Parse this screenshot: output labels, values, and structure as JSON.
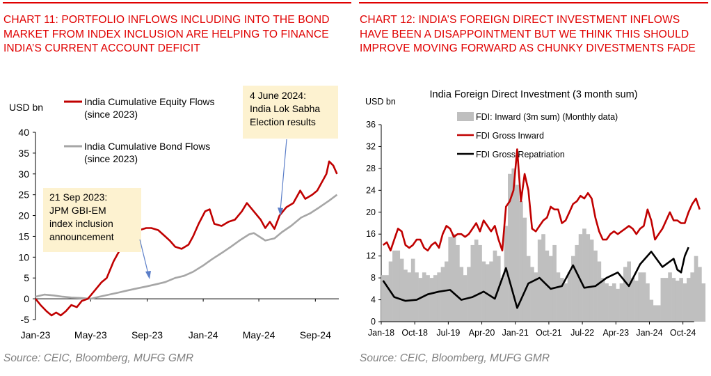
{
  "left": {
    "title": "CHART 11: PORTFOLIO INFLOWS INCLUDING INTO THE BOND MARKET FROM INDEX INCLUSION ARE HELPING TO FINANCE INDIA’S CURRENT ACCOUNT DEFICIT",
    "source": "Source: CEIC, Bloomberg, MUFG GMR",
    "colors": {
      "equity": "#c00000",
      "bond": "#a6a6a6",
      "callout": "#fdf2d0",
      "arrow": "#5b7ec8"
    },
    "annotations": [
      {
        "lines": [
          "4 June 2024:",
          "India Lok Sabha",
          "Election results"
        ]
      },
      {
        "lines": [
          "21 Sep 2023:",
          "JPM GBI-EM",
          "index inclusion",
          "announcement"
        ]
      }
    ],
    "chart_data": {
      "type": "line",
      "ylabel": "USD bn",
      "ylim": [
        -5,
        40
      ],
      "yticks": [
        -5,
        0,
        5,
        10,
        15,
        20,
        25,
        30,
        35,
        40
      ],
      "xlim": [
        "2023-01-01",
        "2024-10-22"
      ],
      "xtick_labels": [
        {
          "date": "2023-01-01",
          "label": "Jan-23"
        },
        {
          "date": "2023-05-01",
          "label": "May-23"
        },
        {
          "date": "2023-09-01",
          "label": "Sep-23"
        },
        {
          "date": "2024-01-01",
          "label": "Jan-24"
        },
        {
          "date": "2024-05-01",
          "label": "May-24"
        },
        {
          "date": "2024-09-01",
          "label": "Sep-24"
        }
      ],
      "legend": [
        "India Cumulative Equity Flows",
        "(since 2023)",
        "India Cumulative Bond Flows",
        "(since 2023)"
      ],
      "series": [
        {
          "name": "India Cumulative Equity Flows (since 2023)",
          "points": [
            [
              "2023-01-01",
              0
            ],
            [
              "2023-01-12",
              -1.5
            ],
            [
              "2023-01-25",
              -3
            ],
            [
              "2023-02-05",
              -4
            ],
            [
              "2023-02-15",
              -3.3
            ],
            [
              "2023-02-25",
              -4
            ],
            [
              "2023-03-08",
              -3
            ],
            [
              "2023-03-20",
              -1.5
            ],
            [
              "2023-04-01",
              -2
            ],
            [
              "2023-04-12",
              -0.5
            ],
            [
              "2023-04-25",
              0
            ],
            [
              "2023-05-10",
              2
            ],
            [
              "2023-05-25",
              4
            ],
            [
              "2023-06-05",
              5
            ],
            [
              "2023-06-20",
              9
            ],
            [
              "2023-07-05",
              12
            ],
            [
              "2023-07-20",
              15
            ],
            [
              "2023-08-01",
              16
            ],
            [
              "2023-08-15",
              16.5
            ],
            [
              "2023-08-30",
              17
            ],
            [
              "2023-09-10",
              17
            ],
            [
              "2023-09-25",
              16.5
            ],
            [
              "2023-10-10",
              15
            ],
            [
              "2023-10-20",
              14
            ],
            [
              "2023-11-01",
              12.5
            ],
            [
              "2023-11-15",
              12
            ],
            [
              "2023-11-30",
              13
            ],
            [
              "2023-12-10",
              15
            ],
            [
              "2023-12-22",
              18
            ],
            [
              "2024-01-05",
              21
            ],
            [
              "2024-01-15",
              21.5
            ],
            [
              "2024-01-25",
              18
            ],
            [
              "2024-02-10",
              17.5
            ],
            [
              "2024-02-25",
              18.5
            ],
            [
              "2024-03-10",
              19
            ],
            [
              "2024-03-25",
              21
            ],
            [
              "2024-04-05",
              23
            ],
            [
              "2024-04-20",
              21
            ],
            [
              "2024-05-05",
              19
            ],
            [
              "2024-05-15",
              17
            ],
            [
              "2024-05-25",
              18.5
            ],
            [
              "2024-06-04",
              16.8
            ],
            [
              "2024-06-15",
              20
            ],
            [
              "2024-06-30",
              22
            ],
            [
              "2024-07-15",
              23
            ],
            [
              "2024-07-30",
              26
            ],
            [
              "2024-08-10",
              24
            ],
            [
              "2024-08-25",
              25
            ],
            [
              "2024-09-05",
              26
            ],
            [
              "2024-09-15",
              28
            ],
            [
              "2024-09-25",
              30
            ],
            [
              "2024-10-01",
              33
            ],
            [
              "2024-10-10",
              32
            ],
            [
              "2024-10-18",
              30
            ]
          ]
        },
        {
          "name": "India Cumulative Bond Flows (since 2023)",
          "points": [
            [
              "2023-01-01",
              0.5
            ],
            [
              "2023-01-20",
              1
            ],
            [
              "2023-02-10",
              0.8
            ],
            [
              "2023-03-01",
              0.5
            ],
            [
              "2023-03-20",
              0.3
            ],
            [
              "2023-04-10",
              0.2
            ],
            [
              "2023-05-01",
              0
            ],
            [
              "2023-05-20",
              0.5
            ],
            [
              "2023-06-10",
              1
            ],
            [
              "2023-07-01",
              1.5
            ],
            [
              "2023-07-20",
              2
            ],
            [
              "2023-08-10",
              2.5
            ],
            [
              "2023-09-01",
              3
            ],
            [
              "2023-09-21",
              3.5
            ],
            [
              "2023-10-10",
              4
            ],
            [
              "2023-11-01",
              5
            ],
            [
              "2023-11-20",
              5.5
            ],
            [
              "2023-12-10",
              6.5
            ],
            [
              "2024-01-01",
              8
            ],
            [
              "2024-01-20",
              9.5
            ],
            [
              "2024-02-10",
              11
            ],
            [
              "2024-03-01",
              12.5
            ],
            [
              "2024-03-20",
              14
            ],
            [
              "2024-04-10",
              15.5
            ],
            [
              "2024-04-20",
              15.8
            ],
            [
              "2024-05-01",
              15
            ],
            [
              "2024-05-15",
              14
            ],
            [
              "2024-06-04",
              14.5
            ],
            [
              "2024-06-20",
              16
            ],
            [
              "2024-07-10",
              17.5
            ],
            [
              "2024-08-01",
              19.5
            ],
            [
              "2024-08-20",
              20.5
            ],
            [
              "2024-09-10",
              22
            ],
            [
              "2024-09-30",
              23.5
            ],
            [
              "2024-10-18",
              25
            ]
          ]
        }
      ]
    }
  },
  "right": {
    "title": "CHART 12: INDIA’S FOREIGN DIRECT INVESTMENT INFLOWS HAVE BEEN A DISAPPOINTMENT BUT WE THINK THIS SHOULD IMPROVE MOVING FORWARD AS CHUNKY DIVESTMENTS FADE",
    "source": "Source: CEIC, Bloomberg, MUFG GMR",
    "colors": {
      "bars": "#bfbfbf",
      "inward": "#c00000",
      "repat": "#000000"
    },
    "chart_data": {
      "type": "bar",
      "title": "India Foreign Direct Investment (3 month sum)",
      "ylabel": "USD bn",
      "ylim": [
        0,
        36
      ],
      "yticks": [
        0,
        4,
        8,
        12,
        16,
        20,
        24,
        28,
        32,
        36
      ],
      "x_months": [
        "2018-01",
        "2024-10"
      ],
      "xtick_labels": [
        "Jan-18",
        "Oct-18",
        "Jul-19",
        "Apr-20",
        "Jan-21",
        "Oct-21",
        "Jul-22",
        "Apr-23",
        "Jan-24",
        "Oct-24"
      ],
      "legend_labels": [
        "FDI: Inward (3m sum) (Monthly data)",
        "FDI Gross Inward",
        "FDI Gross Repatriation"
      ],
      "bars": {
        "name": "FDI: Inward (3m sum) (Monthly data)",
        "values": [
          8.5,
          8.5,
          11,
          13,
          13,
          11.5,
          9.5,
          9,
          11.5,
          9,
          8,
          9,
          8.5,
          8,
          8.5,
          9,
          10,
          11,
          15.5,
          16,
          14,
          10,
          8.5,
          10,
          14,
          15,
          14,
          11,
          10.5,
          11,
          13,
          12,
          8,
          17.5,
          27,
          28,
          25,
          22,
          19,
          12,
          10,
          9,
          15,
          16,
          13,
          12,
          14,
          9,
          8,
          7,
          9,
          12,
          14,
          16,
          17,
          16,
          15,
          13,
          11,
          8,
          7,
          6.5,
          7,
          6,
          7,
          10,
          11,
          8,
          7.5,
          9,
          9,
          7,
          4,
          3,
          3,
          8,
          8,
          9,
          8,
          7.5,
          8,
          7,
          8,
          9,
          12,
          10,
          7
        ]
      },
      "lines": [
        {
          "name": "FDI Gross Inward",
          "values": [
            14,
            14.5,
            13,
            15,
            17,
            16.5,
            14,
            13.5,
            14,
            15,
            15,
            13.5,
            13,
            14,
            14.5,
            13.5,
            16,
            17.5,
            17,
            15.5,
            16,
            16,
            15.5,
            16,
            17,
            18,
            16.5,
            18.5,
            17.5,
            16.5,
            17.5,
            15,
            13,
            21,
            22,
            24,
            31.5,
            22,
            27,
            24,
            17,
            16.5,
            17.5,
            18.5,
            19,
            21,
            20.5,
            20.5,
            18,
            18.5,
            20,
            21.5,
            22,
            23,
            22.5,
            23.5,
            22.5,
            19,
            16.5,
            15,
            15,
            16,
            16.5,
            16,
            16.5,
            17,
            17.5,
            17,
            16,
            17,
            17.5,
            20.5,
            18.5,
            15,
            16,
            17,
            18.5,
            20,
            18.5,
            18.5,
            18,
            18,
            20,
            21.5,
            22.5,
            20.5
          ]
        },
        {
          "name": "FDI Gross Repatriation",
          "points": [
            [
              0,
              7.5
            ],
            [
              3,
              4.5
            ],
            [
              6,
              3.8
            ],
            [
              9,
              4
            ],
            [
              12,
              5
            ],
            [
              15,
              5.5
            ],
            [
              18,
              5.8
            ],
            [
              21,
              4
            ],
            [
              24,
              4.5
            ],
            [
              27,
              5.5
            ],
            [
              30,
              4.2
            ],
            [
              33,
              9.8
            ],
            [
              36,
              2.5
            ],
            [
              39,
              7
            ],
            [
              42,
              8
            ],
            [
              45,
              6
            ],
            [
              48,
              6.5
            ],
            [
              51,
              10.3
            ],
            [
              54,
              6.2
            ],
            [
              57,
              6.5
            ],
            [
              60,
              8
            ],
            [
              63,
              9
            ],
            [
              66,
              6.5
            ],
            [
              69,
              10.5
            ],
            [
              72,
              12.8
            ],
            [
              75,
              10
            ],
            [
              78,
              11.5
            ],
            [
              79,
              9.5
            ],
            [
              80,
              9
            ],
            [
              81,
              12
            ],
            [
              82,
              13.6
            ]
          ]
        }
      ]
    }
  }
}
